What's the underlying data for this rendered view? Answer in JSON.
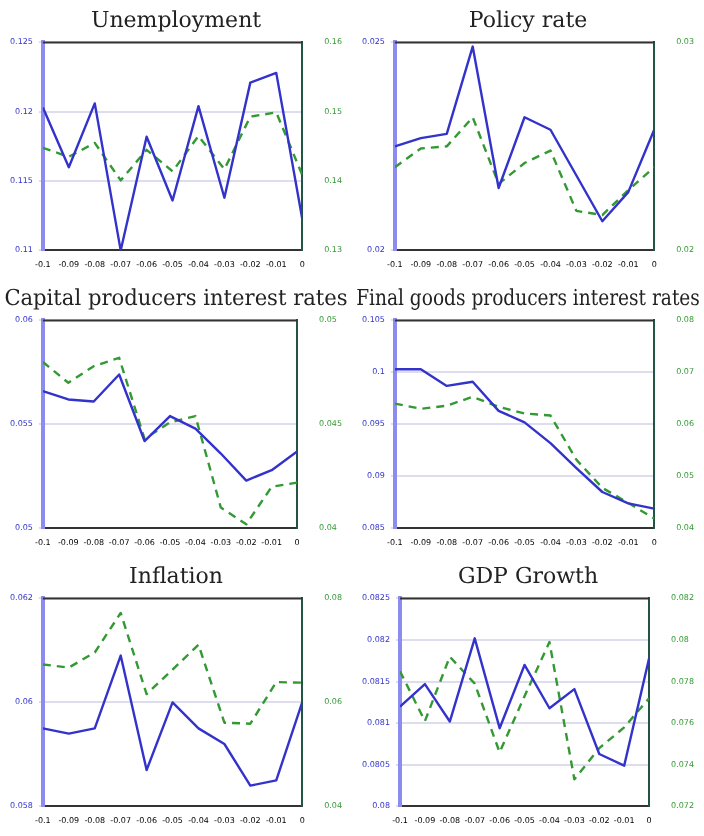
{
  "chart_data": [
    {
      "type": "line",
      "title": "Unemployment",
      "x": [
        -0.1,
        -0.09,
        -0.08,
        -0.07,
        -0.06,
        -0.05,
        -0.04,
        -0.03,
        -0.02,
        -0.01,
        0
      ],
      "xlim": [
        -0.1,
        0
      ],
      "xticks": [
        -0.1,
        -0.09,
        -0.08,
        -0.07,
        -0.06,
        -0.05,
        -0.04,
        -0.03,
        -0.02,
        -0.01,
        0
      ],
      "ylim": [
        0.11,
        0.125
      ],
      "yticks": [
        0.11,
        0.115,
        0.12,
        0.125
      ],
      "y2lim": [
        0.13,
        0.16
      ],
      "y2ticks": [
        0.13,
        0.14,
        0.15,
        0.16
      ],
      "grid": "y",
      "series": [
        {
          "color": "#3333cc",
          "line_style": "solid",
          "values": [
            0.1203,
            0.116,
            0.1206,
            0.11,
            0.1182,
            0.1136,
            0.1204,
            0.1138,
            0.1221,
            0.1228,
            0.1123
          ]
        },
        {
          "color": "#339933",
          "line_style": "dashed",
          "axis": "y2",
          "values": [
            0.1448,
            0.1435,
            0.1455,
            0.1401,
            0.1445,
            0.1414,
            0.1465,
            0.1417,
            0.1493,
            0.1499,
            0.1409
          ]
        }
      ]
    },
    {
      "type": "line",
      "title": "Policy rate",
      "x": [
        -0.1,
        -0.09,
        -0.08,
        -0.07,
        -0.06,
        -0.05,
        -0.04,
        -0.03,
        -0.02,
        -0.01,
        0
      ],
      "xlim": [
        -0.1,
        0
      ],
      "xticks": [
        -0.1,
        -0.09,
        -0.08,
        -0.07,
        -0.06,
        -0.05,
        -0.04,
        -0.03,
        -0.02,
        -0.01,
        0
      ],
      "ylim": [
        0.02,
        0.025
      ],
      "yticks": [
        0.02,
        0.025
      ],
      "y2lim": [
        0.02,
        0.03
      ],
      "y2ticks": [
        0.02,
        0.03
      ],
      "grid": "y",
      "series": [
        {
          "color": "#3333cc",
          "line_style": "solid",
          "values": [
            0.0225,
            0.0227,
            0.0228,
            0.0249,
            0.0215,
            0.0232,
            0.0229,
            0.0218,
            0.0207,
            0.0214,
            0.0229
          ]
        },
        {
          "color": "#339933",
          "line_style": "dashed",
          "axis": "y2",
          "values": [
            0.024,
            0.0249,
            0.025,
            0.0264,
            0.0232,
            0.0242,
            0.0248,
            0.0219,
            0.0217,
            0.0229,
            0.024
          ]
        }
      ]
    },
    {
      "type": "line",
      "title": "Capital producers interest rates",
      "x": [
        -0.1,
        -0.09,
        -0.08,
        -0.07,
        -0.06,
        -0.05,
        -0.04,
        -0.03,
        -0.02,
        -0.01,
        0
      ],
      "xlim": [
        -0.1,
        0
      ],
      "xticks": [
        -0.1,
        -0.09,
        -0.08,
        -0.07,
        -0.06,
        -0.05,
        -0.04,
        -0.03,
        -0.02,
        -0.01,
        0
      ],
      "ylim": [
        0.05,
        0.06
      ],
      "yticks": [
        0.05,
        0.055,
        0.06
      ],
      "y2lim": [
        0.04,
        0.05
      ],
      "y2ticks": [
        0.04,
        0.045,
        0.05
      ],
      "grid": "y",
      "series": [
        {
          "color": "#3333cc",
          "line_style": "solid",
          "values": [
            0.0566,
            0.0562,
            0.0561,
            0.0574,
            0.0542,
            0.0554,
            0.0548,
            0.0536,
            0.0523,
            0.0528,
            0.0537
          ]
        },
        {
          "color": "#339933",
          "line_style": "dashed",
          "axis": "y2",
          "values": [
            0.048,
            0.047,
            0.0478,
            0.0482,
            0.0443,
            0.0451,
            0.0454,
            0.041,
            0.0402,
            0.042,
            0.0422
          ]
        }
      ]
    },
    {
      "type": "line",
      "title": "Final goods producers interest rates",
      "x": [
        -0.1,
        -0.09,
        -0.08,
        -0.07,
        -0.06,
        -0.05,
        -0.04,
        -0.03,
        -0.02,
        -0.01,
        0
      ],
      "xlim": [
        -0.1,
        0
      ],
      "xticks": [
        -0.1,
        -0.09,
        -0.08,
        -0.07,
        -0.06,
        -0.05,
        -0.04,
        -0.03,
        -0.02,
        -0.01,
        0
      ],
      "ylim": [
        0.085,
        0.105
      ],
      "yticks": [
        0.085,
        0.09,
        0.095,
        0.1,
        0.105
      ],
      "y2lim": [
        0.04,
        0.08
      ],
      "y2ticks": [
        0.04,
        0.05,
        0.06,
        0.07,
        0.08
      ],
      "grid": "y",
      "series": [
        {
          "color": "#3333cc",
          "line_style": "solid",
          "values": [
            0.1003,
            0.1003,
            0.0987,
            0.0991,
            0.0963,
            0.0952,
            0.0932,
            0.0908,
            0.0885,
            0.0874,
            0.0869
          ]
        },
        {
          "color": "#339933",
          "line_style": "dashed",
          "axis": "y2",
          "values": [
            0.064,
            0.063,
            0.0636,
            0.0653,
            0.0634,
            0.0621,
            0.0617,
            0.0532,
            0.0478,
            0.0449,
            0.0419
          ]
        }
      ]
    },
    {
      "type": "line",
      "title": "Inflation",
      "x": [
        -0.1,
        -0.09,
        -0.08,
        -0.07,
        -0.06,
        -0.05,
        -0.04,
        -0.03,
        -0.02,
        -0.01,
        0
      ],
      "xlim": [
        -0.1,
        0
      ],
      "xticks": [
        -0.1,
        -0.09,
        -0.08,
        -0.07,
        -0.06,
        -0.05,
        -0.04,
        -0.03,
        -0.02,
        -0.01,
        0
      ],
      "ylim": [
        0.058,
        0.062
      ],
      "yticks": [
        0.058,
        0.06,
        0.062
      ],
      "y2lim": [
        0.04,
        0.08
      ],
      "y2ticks": [
        0.04,
        0.06,
        0.08
      ],
      "grid": "y",
      "series": [
        {
          "color": "#3333cc",
          "line_style": "solid",
          "values": [
            0.0595,
            0.0594,
            0.0595,
            0.0609,
            0.0587,
            0.06,
            0.0595,
            0.0592,
            0.0584,
            0.0585,
            0.06
          ]
        },
        {
          "color": "#339933",
          "line_style": "dashed",
          "axis": "y2",
          "values": [
            0.0673,
            0.0667,
            0.0696,
            0.0772,
            0.0616,
            0.0663,
            0.0711,
            0.0561,
            0.0559,
            0.0639,
            0.0638
          ]
        }
      ]
    },
    {
      "type": "line",
      "title": "GDP Growth",
      "x": [
        -0.1,
        -0.09,
        -0.08,
        -0.07,
        -0.06,
        -0.05,
        -0.04,
        -0.03,
        -0.02,
        -0.01,
        0
      ],
      "xlim": [
        -0.1,
        0
      ],
      "xticks": [
        -0.1,
        -0.09,
        -0.08,
        -0.07,
        -0.06,
        -0.05,
        -0.04,
        -0.03,
        -0.02,
        -0.01,
        0
      ],
      "ylim": [
        0.08,
        0.0825
      ],
      "yticks": [
        0.08,
        0.0805,
        0.081,
        0.0815,
        0.082,
        0.0825
      ],
      "y2lim": [
        0.072,
        0.082
      ],
      "y2ticks": [
        0.072,
        0.074,
        0.076,
        0.078,
        0.08,
        0.082
      ],
      "grid": "y",
      "series": [
        {
          "color": "#3333cc",
          "line_style": "solid",
          "values": [
            0.0812,
            0.08147,
            0.08102,
            0.08202,
            0.08094,
            0.0817,
            0.08118,
            0.08141,
            0.08063,
            0.08049,
            0.08178
          ]
        },
        {
          "color": "#339933",
          "line_style": "dashed",
          "axis": "y2",
          "values": [
            0.0785,
            0.0761,
            0.0792,
            0.0779,
            0.0746,
            0.0773,
            0.0799,
            0.0733,
            0.0748,
            0.0758,
            0.0772
          ]
        }
      ]
    }
  ]
}
